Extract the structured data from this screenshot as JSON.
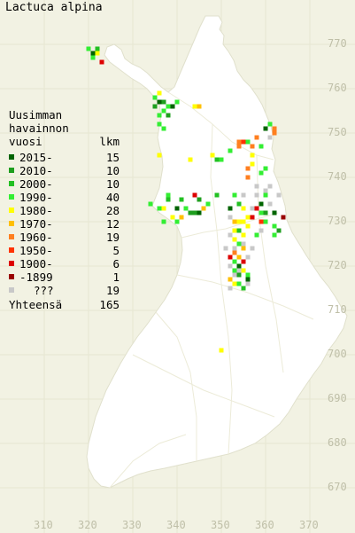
{
  "title": "Lactuca alpina",
  "legend": {
    "heading": [
      "Uusimman",
      "havainnon"
    ],
    "col_left": "vuosi",
    "col_right": "lkm",
    "items": [
      {
        "label": "2015-",
        "count": "15",
        "color": "#006400"
      },
      {
        "label": "2010-",
        "count": "10",
        "color": "#1e9e1e"
      },
      {
        "label": "2000-",
        "count": "10",
        "color": "#22c022"
      },
      {
        "label": "1990-",
        "count": "40",
        "color": "#33ee33"
      },
      {
        "label": "1980-",
        "count": "28",
        "color": "#ffff00"
      },
      {
        "label": "1970-",
        "count": "12",
        "color": "#ffbf00"
      },
      {
        "label": "1960-",
        "count": "19",
        "color": "#ff7f1f"
      },
      {
        "label": "1950-",
        "count": "5",
        "color": "#ff3300"
      },
      {
        "label": "1900-",
        "count": "6",
        "color": "#dd0000"
      },
      {
        "label": "-1899",
        "count": "1",
        "color": "#990000"
      },
      {
        "label": "???",
        "count": "19",
        "color": "#c8c8c8"
      }
    ],
    "total_label": "Yhteensä",
    "total_count": "165"
  },
  "x_axis": [
    "310",
    "320",
    "330",
    "340",
    "350",
    "360",
    "370"
  ],
  "y_axis": [
    "770",
    "760",
    "750",
    "740",
    "730",
    "720",
    "710",
    "700",
    "690",
    "680",
    "670"
  ],
  "colors": {
    "background": "#f2f2e3",
    "land": "#ffffff",
    "grid": "#e6e6d2",
    "axis_text": "#bfbfa8"
  },
  "records": [
    {
      "x": 320,
      "y": 769,
      "c": 3
    },
    {
      "x": 321,
      "y": 768,
      "c": 0
    },
    {
      "x": 322,
      "y": 769,
      "c": 2
    },
    {
      "x": 322,
      "y": 768,
      "c": 4
    },
    {
      "x": 321,
      "y": 767,
      "c": 3
    },
    {
      "x": 323,
      "y": 766,
      "c": 8
    },
    {
      "x": 336,
      "y": 759,
      "c": 4
    },
    {
      "x": 335,
      "y": 758,
      "c": 3
    },
    {
      "x": 336,
      "y": 757,
      "c": 0
    },
    {
      "x": 337,
      "y": 757,
      "c": 1
    },
    {
      "x": 338,
      "y": 756,
      "c": 3
    },
    {
      "x": 335,
      "y": 756,
      "c": 1
    },
    {
      "x": 337,
      "y": 755,
      "c": 3
    },
    {
      "x": 339,
      "y": 756,
      "c": 0
    },
    {
      "x": 336,
      "y": 754,
      "c": 3
    },
    {
      "x": 338,
      "y": 754,
      "c": 1
    },
    {
      "x": 340,
      "y": 757,
      "c": 3
    },
    {
      "x": 336,
      "y": 752,
      "c": 3
    },
    {
      "x": 337,
      "y": 751,
      "c": 3
    },
    {
      "x": 345,
      "y": 756,
      "c": 5
    },
    {
      "x": 344,
      "y": 756,
      "c": 4
    },
    {
      "x": 361,
      "y": 752,
      "c": 3
    },
    {
      "x": 360,
      "y": 751,
      "c": 0
    },
    {
      "x": 362,
      "y": 751,
      "c": 6
    },
    {
      "x": 362,
      "y": 750,
      "c": 6
    },
    {
      "x": 358,
      "y": 749,
      "c": 6
    },
    {
      "x": 356,
      "y": 748,
      "c": 3
    },
    {
      "x": 355,
      "y": 748,
      "c": 7
    },
    {
      "x": 354,
      "y": 747,
      "c": 6
    },
    {
      "x": 354,
      "y": 748,
      "c": 6
    },
    {
      "x": 357,
      "y": 747,
      "c": 6
    },
    {
      "x": 359,
      "y": 747,
      "c": 3
    },
    {
      "x": 352,
      "y": 746,
      "c": 3
    },
    {
      "x": 357,
      "y": 745,
      "c": 4
    },
    {
      "x": 343,
      "y": 744,
      "c": 4
    },
    {
      "x": 348,
      "y": 745,
      "c": 4
    },
    {
      "x": 349,
      "y": 744,
      "c": 2
    },
    {
      "x": 350,
      "y": 744,
      "c": 3
    },
    {
      "x": 336,
      "y": 745,
      "c": 4
    },
    {
      "x": 356,
      "y": 742,
      "c": 6
    },
    {
      "x": 357,
      "y": 743,
      "c": 4
    },
    {
      "x": 360,
      "y": 742,
      "c": 3
    },
    {
      "x": 359,
      "y": 741,
      "c": 3
    },
    {
      "x": 356,
      "y": 740,
      "c": 6
    },
    {
      "x": 361,
      "y": 738,
      "c": 10
    },
    {
      "x": 363,
      "y": 736,
      "c": 10
    },
    {
      "x": 360,
      "y": 736,
      "c": 3
    },
    {
      "x": 338,
      "y": 736,
      "c": 3
    },
    {
      "x": 338,
      "y": 735,
      "c": 2
    },
    {
      "x": 341,
      "y": 735,
      "c": 2
    },
    {
      "x": 344,
      "y": 736,
      "c": 8
    },
    {
      "x": 345,
      "y": 735,
      "c": 1
    },
    {
      "x": 347,
      "y": 734,
      "c": 3
    },
    {
      "x": 346,
      "y": 733,
      "c": 5
    },
    {
      "x": 349,
      "y": 736,
      "c": 2
    },
    {
      "x": 334,
      "y": 734,
      "c": 3
    },
    {
      "x": 336,
      "y": 733,
      "c": 3
    },
    {
      "x": 337,
      "y": 733,
      "c": 4
    },
    {
      "x": 340,
      "y": 733,
      "c": 0
    },
    {
      "x": 342,
      "y": 733,
      "c": 3
    },
    {
      "x": 343,
      "y": 732,
      "c": 1
    },
    {
      "x": 344,
      "y": 732,
      "c": 1
    },
    {
      "x": 345,
      "y": 732,
      "c": 0
    },
    {
      "x": 339,
      "y": 731,
      "c": 4
    },
    {
      "x": 341,
      "y": 731,
      "c": 5
    },
    {
      "x": 340,
      "y": 730,
      "c": 3
    },
    {
      "x": 337,
      "y": 730,
      "c": 3
    },
    {
      "x": 353,
      "y": 736,
      "c": 3
    },
    {
      "x": 354,
      "y": 734,
      "c": 2
    },
    {
      "x": 352,
      "y": 733,
      "c": 0
    },
    {
      "x": 355,
      "y": 733,
      "c": 4
    },
    {
      "x": 357,
      "y": 733,
      "c": 10
    },
    {
      "x": 358,
      "y": 733,
      "c": 8
    },
    {
      "x": 359,
      "y": 734,
      "c": 0
    },
    {
      "x": 359,
      "y": 732,
      "c": 3
    },
    {
      "x": 360,
      "y": 732,
      "c": 1
    },
    {
      "x": 362,
      "y": 732,
      "c": 0
    },
    {
      "x": 364,
      "y": 731,
      "c": 9
    },
    {
      "x": 357,
      "y": 731,
      "c": 8
    },
    {
      "x": 356,
      "y": 731,
      "c": 4
    },
    {
      "x": 353,
      "y": 730,
      "c": 5
    },
    {
      "x": 354,
      "y": 730,
      "c": 4
    },
    {
      "x": 355,
      "y": 730,
      "c": 4
    },
    {
      "x": 356,
      "y": 729,
      "c": 4
    },
    {
      "x": 359,
      "y": 730,
      "c": 7
    },
    {
      "x": 360,
      "y": 730,
      "c": 3
    },
    {
      "x": 362,
      "y": 729,
      "c": 3
    },
    {
      "x": 363,
      "y": 728,
      "c": 1
    },
    {
      "x": 362,
      "y": 727,
      "c": 3
    },
    {
      "x": 353,
      "y": 728,
      "c": 4
    },
    {
      "x": 354,
      "y": 728,
      "c": 2
    },
    {
      "x": 355,
      "y": 727,
      "c": 4
    },
    {
      "x": 358,
      "y": 727,
      "c": 3
    },
    {
      "x": 353,
      "y": 726,
      "c": 4
    },
    {
      "x": 354,
      "y": 725,
      "c": 3
    },
    {
      "x": 355,
      "y": 724,
      "c": 5
    },
    {
      "x": 353,
      "y": 723,
      "c": 6
    },
    {
      "x": 354,
      "y": 722,
      "c": 5
    },
    {
      "x": 352,
      "y": 722,
      "c": 8
    },
    {
      "x": 353,
      "y": 721,
      "c": 3
    },
    {
      "x": 354,
      "y": 720,
      "c": 0
    },
    {
      "x": 355,
      "y": 721,
      "c": 8
    },
    {
      "x": 353,
      "y": 719,
      "c": 3
    },
    {
      "x": 354,
      "y": 718,
      "c": 1
    },
    {
      "x": 355,
      "y": 719,
      "c": 4
    },
    {
      "x": 356,
      "y": 718,
      "c": 3
    },
    {
      "x": 356,
      "y": 717,
      "c": 0
    },
    {
      "x": 352,
      "y": 717,
      "c": 5
    },
    {
      "x": 353,
      "y": 716,
      "c": 4
    },
    {
      "x": 354,
      "y": 716,
      "c": 3
    },
    {
      "x": 355,
      "y": 715,
      "c": 2
    },
    {
      "x": 350,
      "y": 701,
      "c": 4
    },
    {
      "x": 352,
      "y": 731,
      "c": 10
    },
    {
      "x": 355,
      "y": 736,
      "c": 10
    },
    {
      "x": 358,
      "y": 736,
      "c": 10
    },
    {
      "x": 353,
      "y": 724,
      "c": 10
    },
    {
      "x": 352,
      "y": 720,
      "c": 10
    },
    {
      "x": 354,
      "y": 719,
      "c": 10
    },
    {
      "x": 352,
      "y": 715,
      "c": 10
    },
    {
      "x": 356,
      "y": 722,
      "c": 10
    },
    {
      "x": 360,
      "y": 737,
      "c": 10
    },
    {
      "x": 357,
      "y": 724,
      "c": 10
    },
    {
      "x": 353,
      "y": 718,
      "c": 10
    },
    {
      "x": 361,
      "y": 734,
      "c": 10
    },
    {
      "x": 359,
      "y": 728,
      "c": 10
    },
    {
      "x": 352,
      "y": 727,
      "c": 10
    },
    {
      "x": 356,
      "y": 716,
      "c": 10
    },
    {
      "x": 361,
      "y": 749,
      "c": 10
    },
    {
      "x": 355,
      "y": 725,
      "c": 10
    },
    {
      "x": 358,
      "y": 738,
      "c": 10
    },
    {
      "x": 351,
      "y": 724,
      "c": 10
    }
  ]
}
